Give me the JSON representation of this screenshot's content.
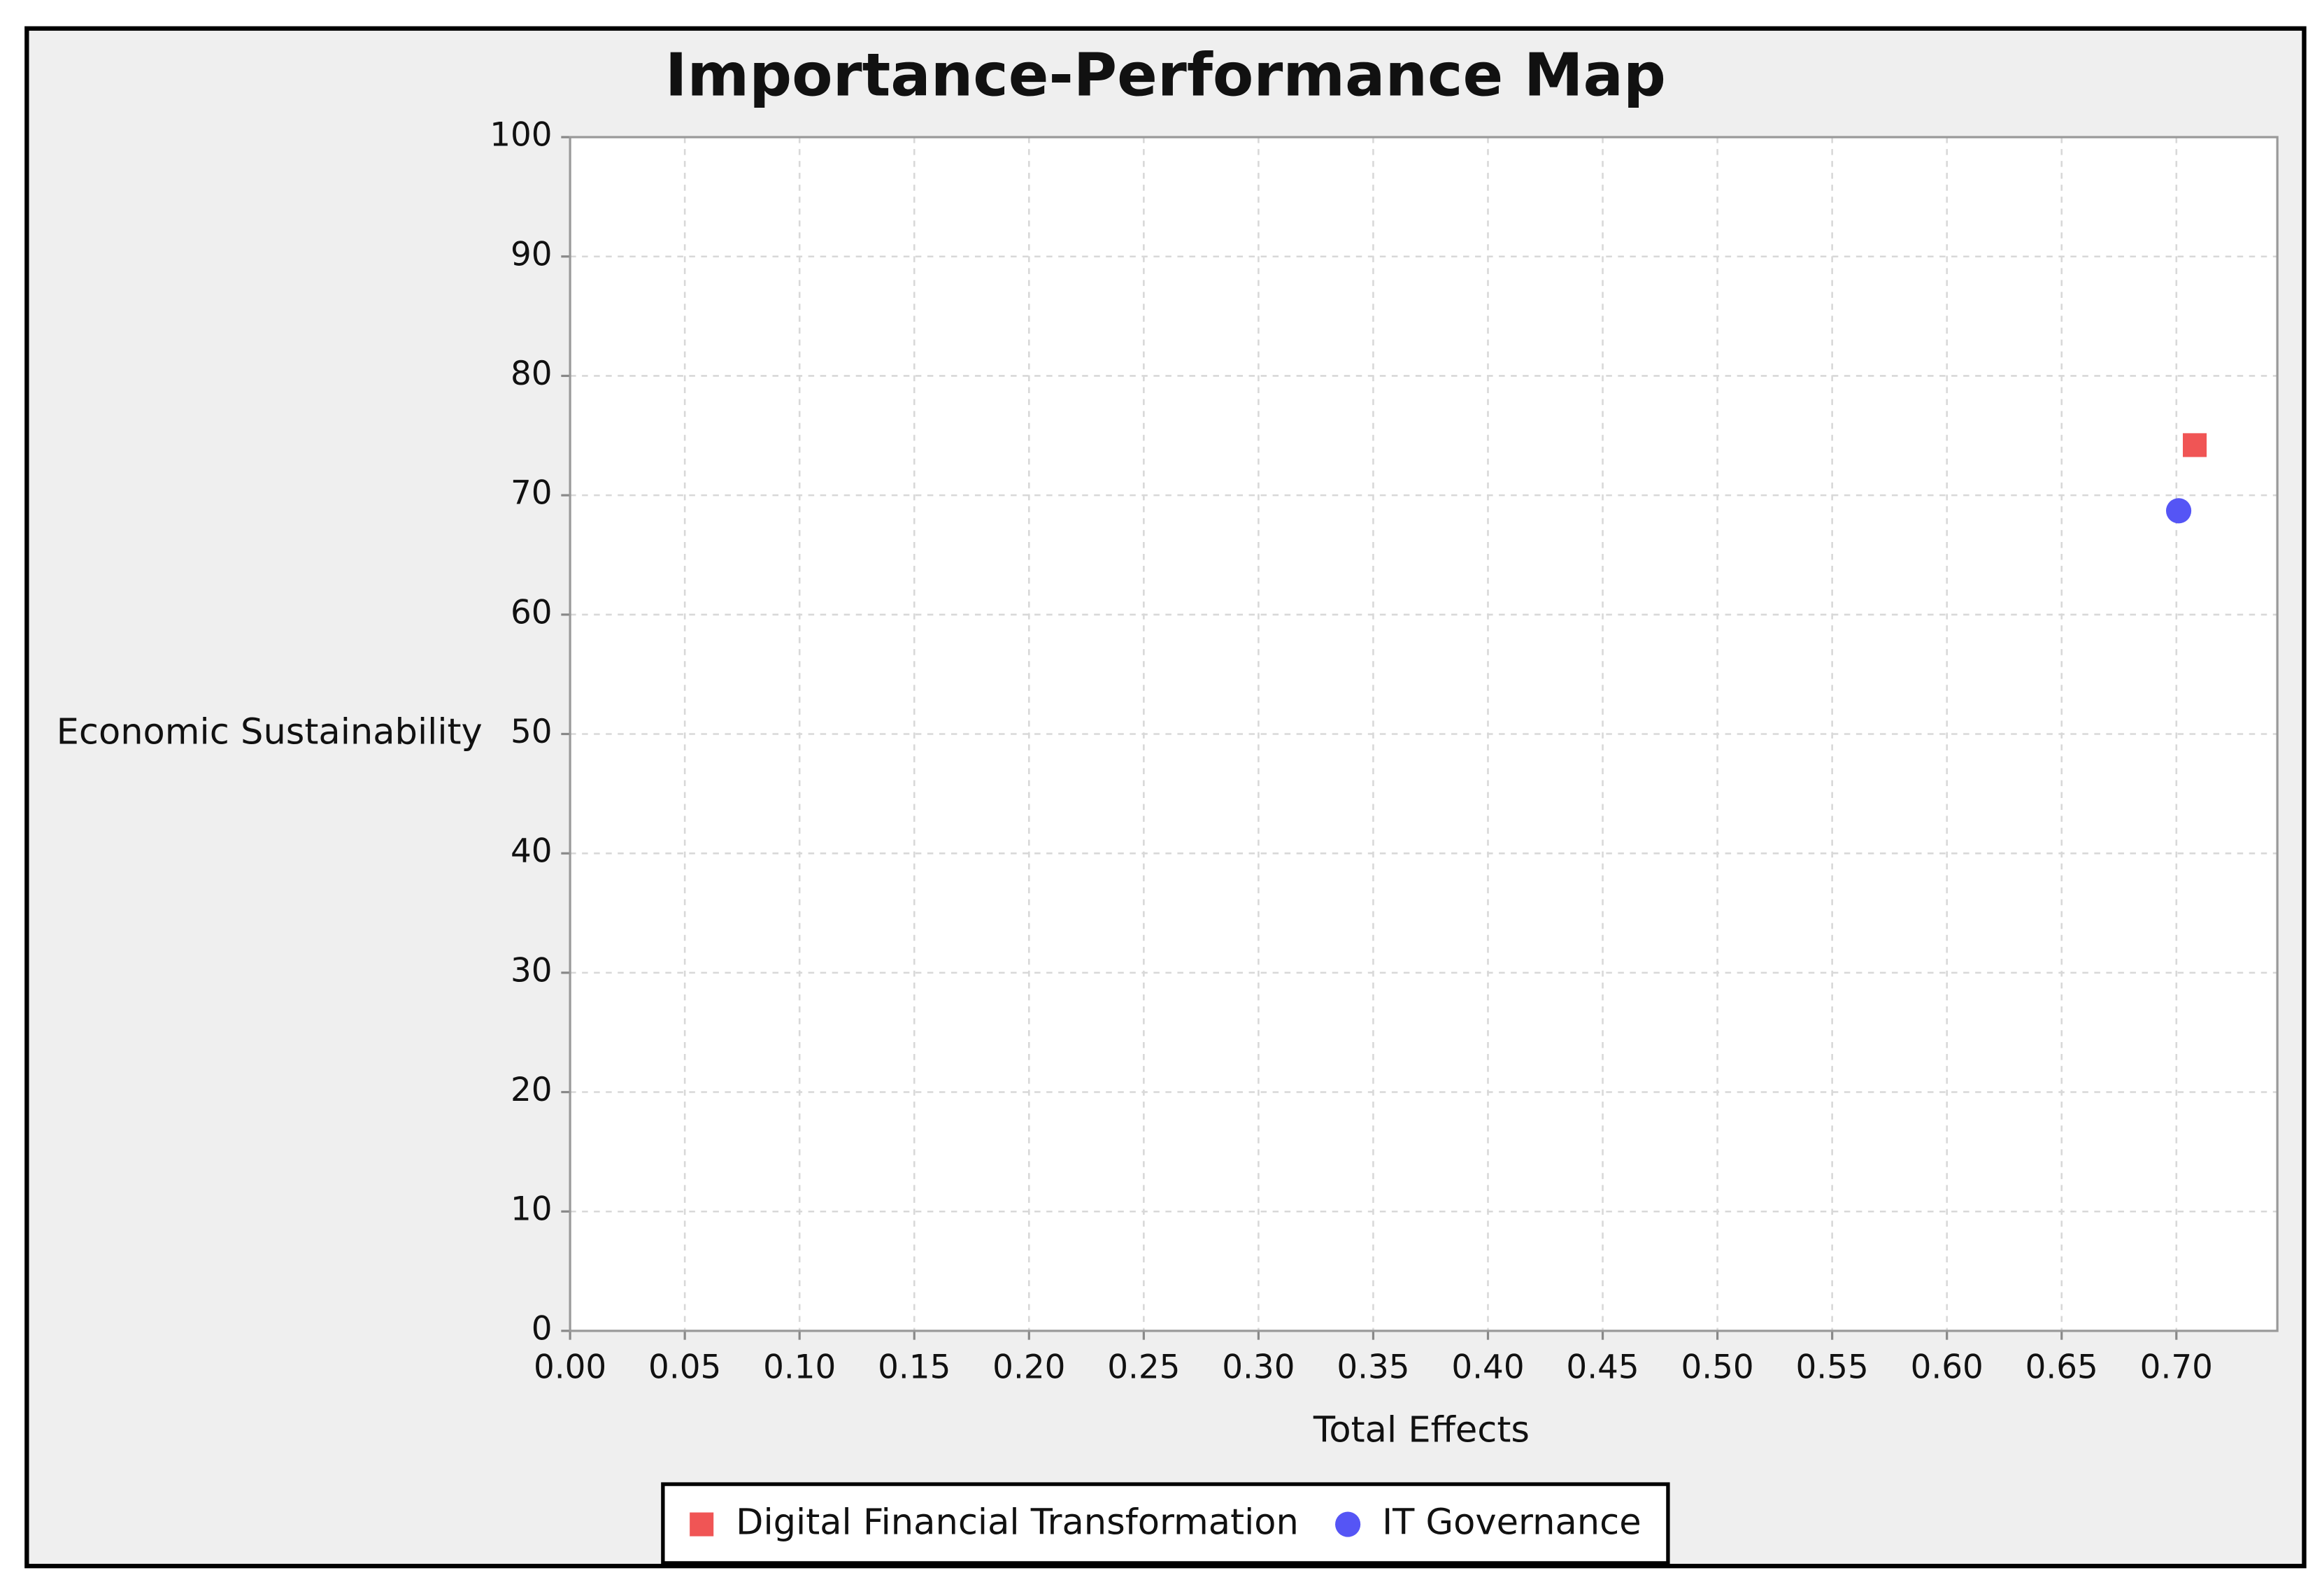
{
  "chart_data": {
    "type": "scatter",
    "title": "Importance-Performance Map",
    "x_label": "Total Effects",
    "y_label": "Economic Sustainability",
    "xlim": [
      0,
      0.744
    ],
    "ylim": [
      0,
      100
    ],
    "xticks": [
      {
        "value": 0,
        "label": "0.00"
      },
      0.05,
      {
        "value": 0.1,
        "label": "0.10"
      },
      0.15,
      {
        "value": 0.2,
        "label": "0.20"
      },
      0.25,
      {
        "value": 0.3,
        "label": "0.30"
      },
      0.35,
      {
        "value": 0.4,
        "label": "0.40"
      },
      0.45,
      {
        "value": 0.5,
        "label": "0.50"
      },
      0.55,
      {
        "value": 0.6,
        "label": "0.60"
      },
      0.65,
      {
        "value": 0.7,
        "label": "0.70"
      }
    ],
    "yticks": [
      0,
      10,
      20,
      30,
      40,
      50,
      60,
      70,
      80,
      90,
      100
    ],
    "grid": true,
    "legend": "bottom",
    "series": [
      {
        "name": "Digital Financial Transformation",
        "color": "#f05555",
        "marker": "square",
        "x": [
          0.708
        ],
        "values": [
          74.2
        ]
      },
      {
        "name": "IT Governance",
        "color": "#5555f5",
        "marker": "circle",
        "x": [
          0.701
        ],
        "values": [
          68.7
        ]
      }
    ]
  }
}
